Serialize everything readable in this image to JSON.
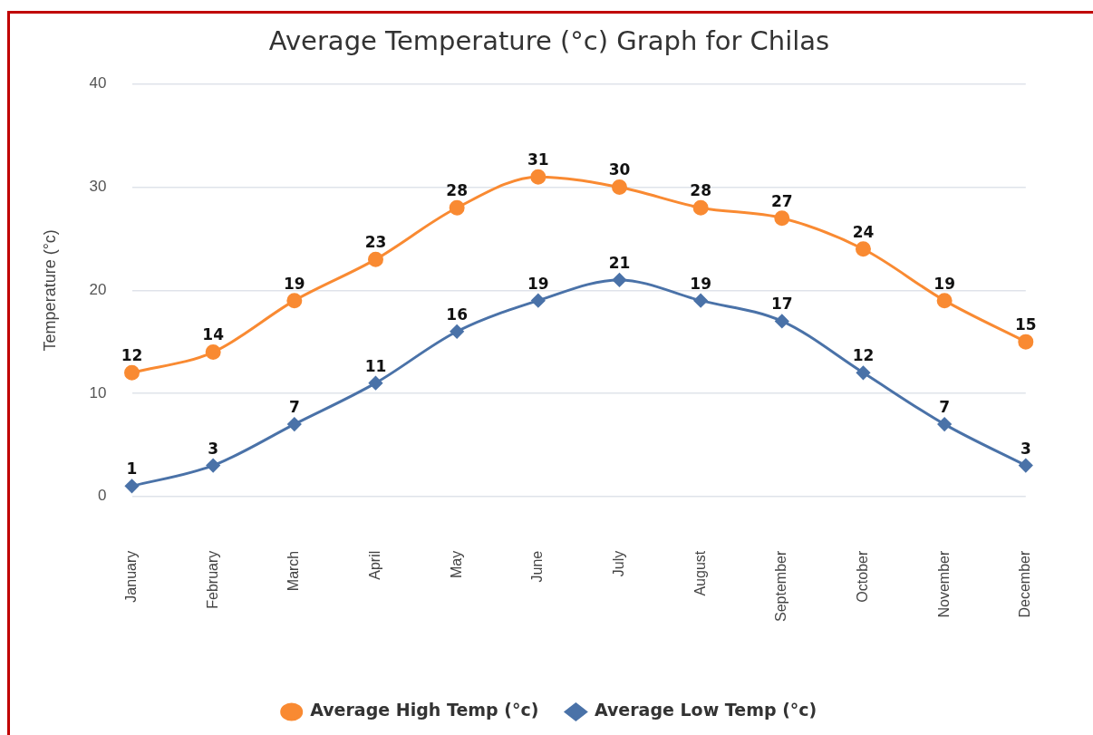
{
  "chart_data": {
    "type": "line",
    "title": "Average Temperature (°c) Graph for Chilas",
    "ylabel": "Temperature (°c)",
    "categories": [
      "January",
      "February",
      "March",
      "April",
      "May",
      "June",
      "July",
      "August",
      "September",
      "October",
      "November",
      "December"
    ],
    "series": [
      {
        "name": "Average High Temp (°c)",
        "color": "#f98a32",
        "marker": "circle",
        "values": [
          12,
          14,
          19,
          23,
          28,
          31,
          30,
          28,
          27,
          24,
          19,
          15
        ]
      },
      {
        "name": "Average Low Temp (°c)",
        "color": "#4a72a8",
        "marker": "diamond",
        "values": [
          1,
          3,
          7,
          11,
          16,
          19,
          21,
          19,
          17,
          12,
          7,
          3
        ]
      }
    ],
    "ylim": [
      0,
      40
    ],
    "yticks": [
      0,
      10,
      20,
      30,
      40
    ],
    "grid": "y",
    "legend": "bottom",
    "data_labels": true,
    "line_style": "solid"
  }
}
